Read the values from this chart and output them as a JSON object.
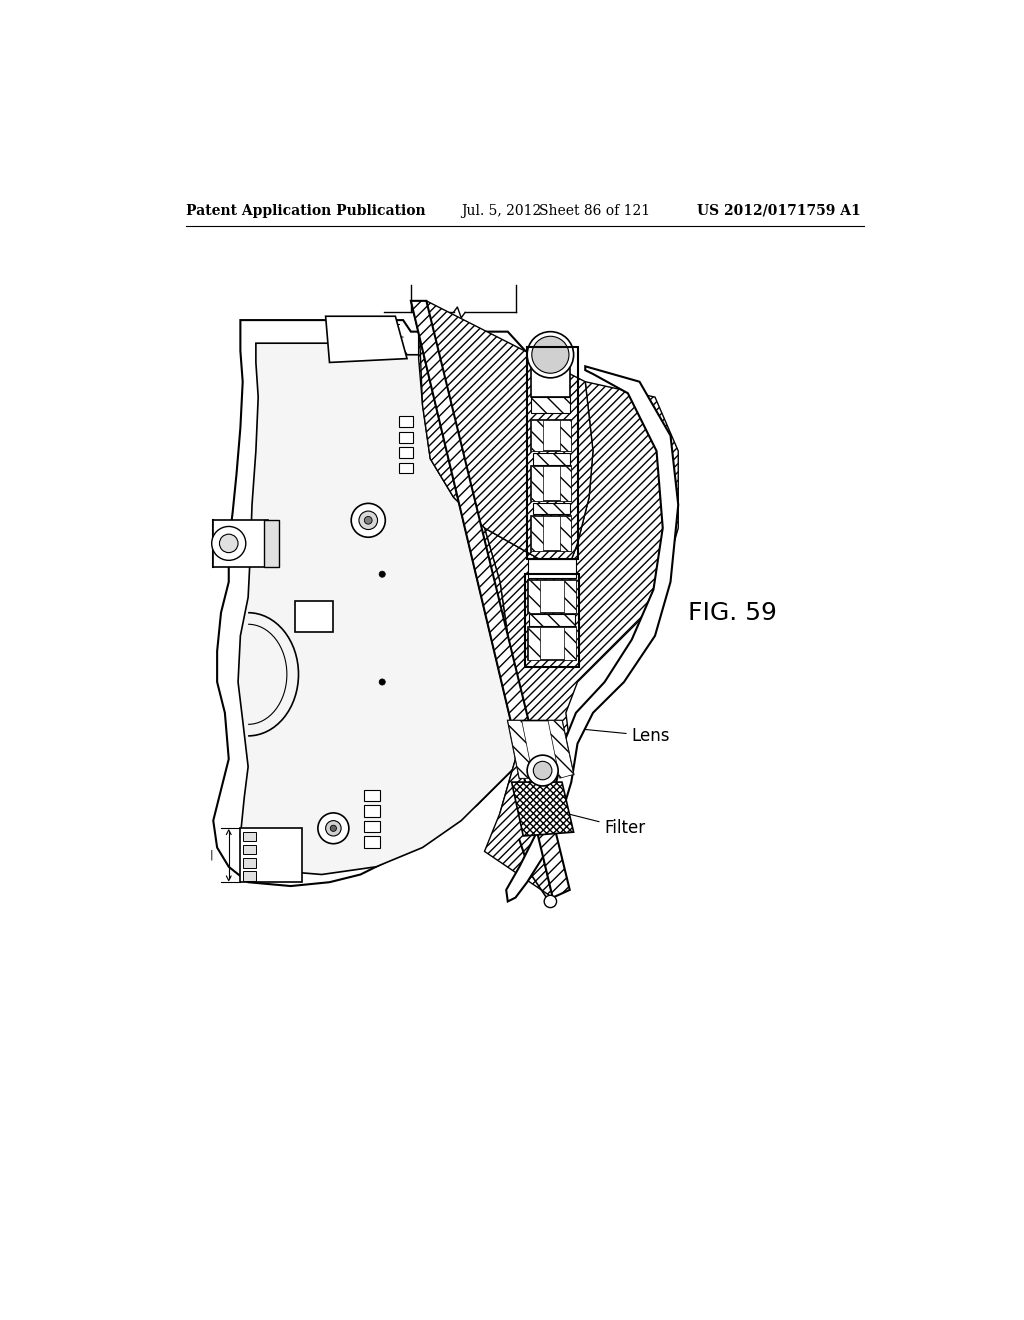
{
  "header_left": "Patent Application Publication",
  "header_mid": "Jul. 5, 2012   Sheet 86 of 121",
  "header_right": "US 2012/0171759 A1",
  "fig_label": "FIG. 59",
  "label_lens": "Lens",
  "label_filter": "Filter",
  "bg_color": "#ffffff",
  "line_color": "#000000",
  "header_fontsize": 10,
  "fig_label_fontsize": 18,
  "annotation_fontsize": 12
}
